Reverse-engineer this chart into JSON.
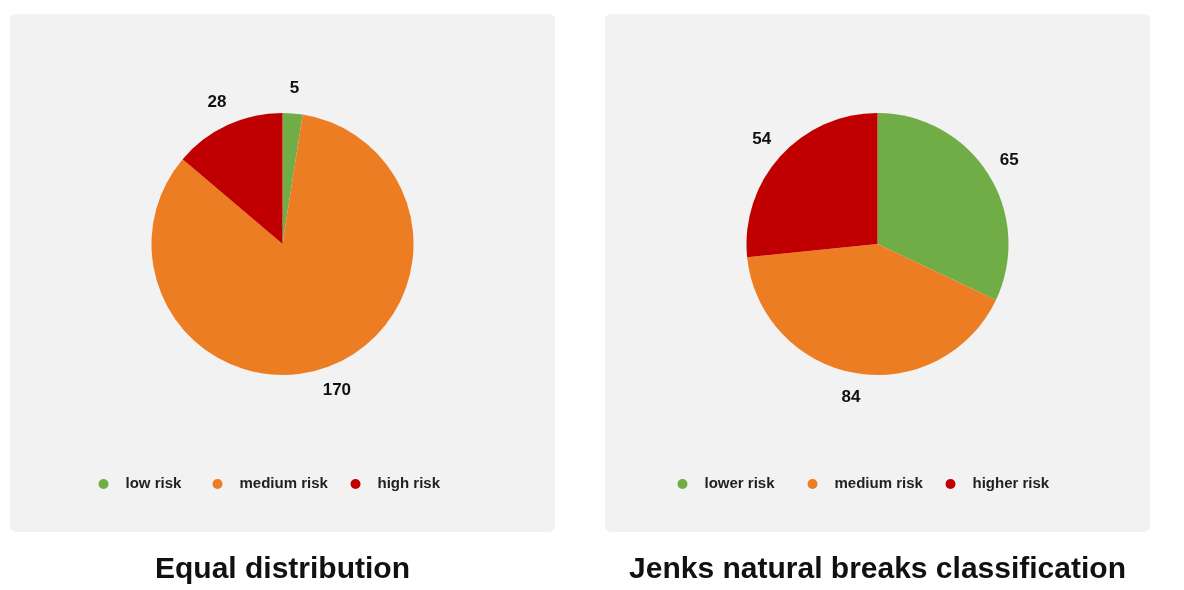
{
  "chart_data": [
    {
      "type": "pie",
      "title": "Equal distribution",
      "categories": [
        "low risk",
        "medium risk",
        "high risk"
      ],
      "values": [
        5,
        170,
        28
      ],
      "colors": [
        "#70ad47",
        "#ed7d22",
        "#c00000"
      ],
      "data_labels": true,
      "legend": "bottom"
    },
    {
      "type": "pie",
      "title": "Jenks natural breaks classification",
      "categories": [
        "lower risk",
        "medium risk",
        "higher risk"
      ],
      "values": [
        65,
        84,
        54
      ],
      "colors": [
        "#70ad47",
        "#ed7d22",
        "#c00000"
      ],
      "data_labels": true,
      "legend": "bottom"
    }
  ]
}
